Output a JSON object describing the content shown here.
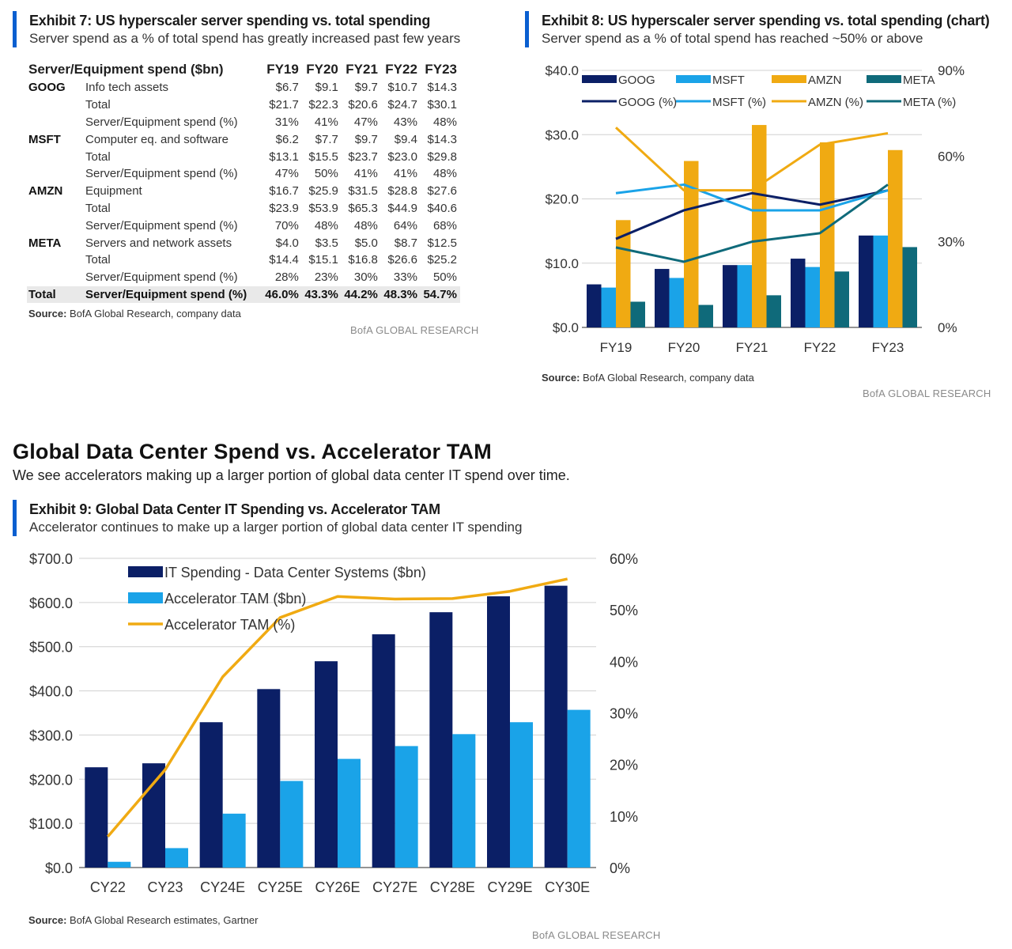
{
  "exhibit7": {
    "title": "Exhibit 7: US hyperscaler server spending vs. total spending",
    "subtitle": "Server spend as a % of total spend has greatly increased past few years",
    "header": "Server/Equipment spend ($bn)",
    "years": [
      "FY19",
      "FY20",
      "FY21",
      "FY22",
      "FY23"
    ],
    "rows": [
      {
        "company": "GOOG",
        "item": "Info tech assets",
        "values": [
          "$6.7",
          "$9.1",
          "$9.7",
          "$10.7",
          "$14.3"
        ]
      },
      {
        "company": "",
        "item": "Total",
        "values": [
          "$21.7",
          "$22.3",
          "$20.6",
          "$24.7",
          "$30.1"
        ]
      },
      {
        "company": "",
        "item": "Server/Equipment spend (%)",
        "values": [
          "31%",
          "41%",
          "47%",
          "43%",
          "48%"
        ]
      },
      {
        "company": "MSFT",
        "item": "Computer eq. and software",
        "values": [
          "$6.2",
          "$7.7",
          "$9.7",
          "$9.4",
          "$14.3"
        ]
      },
      {
        "company": "",
        "item": "Total",
        "values": [
          "$13.1",
          "$15.5",
          "$23.7",
          "$23.0",
          "$29.8"
        ]
      },
      {
        "company": "",
        "item": "Server/Equipment spend (%)",
        "values": [
          "47%",
          "50%",
          "41%",
          "41%",
          "48%"
        ]
      },
      {
        "company": "AMZN",
        "item": "Equipment",
        "values": [
          "$16.7",
          "$25.9",
          "$31.5",
          "$28.8",
          "$27.6"
        ]
      },
      {
        "company": "",
        "item": "Total",
        "values": [
          "$23.9",
          "$53.9",
          "$65.3",
          "$44.9",
          "$40.6"
        ]
      },
      {
        "company": "",
        "item": "Server/Equipment spend (%)",
        "values": [
          "70%",
          "48%",
          "48%",
          "64%",
          "68%"
        ]
      },
      {
        "company": "META",
        "item": "Servers and network assets",
        "values": [
          "$4.0",
          "$3.5",
          "$5.0",
          "$8.7",
          "$12.5"
        ]
      },
      {
        "company": "",
        "item": "Total",
        "values": [
          "$14.4",
          "$15.1",
          "$16.8",
          "$26.6",
          "$25.2"
        ]
      },
      {
        "company": "",
        "item": "Server/Equipment spend (%)",
        "values": [
          "28%",
          "23%",
          "30%",
          "33%",
          "50%"
        ]
      }
    ],
    "total_row": {
      "label": "Total",
      "item": "Server/Equipment spend (%)",
      "values": [
        "46.0%",
        "43.3%",
        "44.2%",
        "48.3%",
        "54.7%"
      ]
    },
    "source_label": "Source:",
    "source_text": "BofA Global Research, company data",
    "brand": "BofA GLOBAL RESEARCH"
  },
  "exhibit8": {
    "title": "Exhibit 8: US hyperscaler server spending vs. total spending (chart)",
    "subtitle": "Server spend as a % of total spend has reached ~50% or above",
    "source_label": "Source:",
    "source_text": "BofA Global Research, company data",
    "brand": "BofA GLOBAL RESEARCH"
  },
  "section": {
    "title": "Global Data Center Spend vs. Accelerator TAM",
    "subtitle": "We see accelerators making up a larger portion of global data center IT spend over time."
  },
  "exhibit9": {
    "title": "Exhibit 9: Global Data Center IT Spending vs. Accelerator TAM",
    "subtitle": "Accelerator continues to make up a larger portion of global data center IT spending",
    "source_label": "Source:",
    "source_text": "BofA Global Research estimates, Gartner",
    "brand": "BofA GLOBAL RESEARCH"
  },
  "colors": {
    "navy": "#0b1f66",
    "blue": "#1aa3e8",
    "orange": "#f0aa12",
    "teal": "#0f6a7a",
    "accent": "#0a5fd0"
  },
  "chart_data": [
    {
      "type": "bar",
      "categories": [
        "FY19",
        "FY20",
        "FY21",
        "FY22",
        "FY23"
      ],
      "series": [
        {
          "name": "GOOG",
          "axis": "left",
          "color": "#0b1f66",
          "values": [
            6.7,
            9.1,
            9.7,
            10.7,
            14.3
          ]
        },
        {
          "name": "MSFT",
          "axis": "left",
          "color": "#1aa3e8",
          "values": [
            6.2,
            7.7,
            9.7,
            9.4,
            14.3
          ]
        },
        {
          "name": "AMZN",
          "axis": "left",
          "color": "#f0aa12",
          "values": [
            16.7,
            25.9,
            31.5,
            28.8,
            27.6
          ]
        },
        {
          "name": "META",
          "axis": "left",
          "color": "#0f6a7a",
          "values": [
            4.0,
            3.5,
            5.0,
            8.7,
            12.5
          ]
        }
      ],
      "line_series": [
        {
          "name": "GOOG (%)",
          "axis": "right",
          "color": "#0b1f66",
          "values": [
            31,
            41,
            47,
            43,
            48
          ]
        },
        {
          "name": "MSFT (%)",
          "axis": "right",
          "color": "#1aa3e8",
          "values": [
            47,
            50,
            41,
            41,
            48
          ]
        },
        {
          "name": "AMZN (%)",
          "axis": "right",
          "color": "#f0aa12",
          "values": [
            70,
            48,
            48,
            64,
            68
          ]
        },
        {
          "name": "META (%)",
          "axis": "right",
          "color": "#0f6a7a",
          "values": [
            28,
            23,
            30,
            33,
            50
          ]
        }
      ],
      "ylim": [
        0,
        40
      ],
      "yticks": [
        "$0.0",
        "$10.0",
        "$20.0",
        "$30.0",
        "$40.0"
      ],
      "y2lim": [
        0,
        90
      ],
      "y2ticks": [
        "0%",
        "30%",
        "60%",
        "90%"
      ],
      "grid": true,
      "legend": "top"
    },
    {
      "type": "bar",
      "categories": [
        "CY22",
        "CY23",
        "CY24E",
        "CY25E",
        "CY26E",
        "CY27E",
        "CY28E",
        "CY29E",
        "CY30E"
      ],
      "series": [
        {
          "name": "IT Spending - Data Center Systems ($bn)",
          "axis": "left",
          "color": "#0b1f66",
          "values": [
            227,
            236,
            329,
            404,
            467,
            528,
            578,
            614,
            638
          ]
        },
        {
          "name": "Accelerator TAM ($bn)",
          "axis": "left",
          "color": "#1aa3e8",
          "values": [
            13,
            44,
            122,
            196,
            246,
            275,
            302,
            329,
            357
          ]
        }
      ],
      "line_series": [
        {
          "name": "Accelerator TAM (%)",
          "axis": "right",
          "color": "#f0aa12",
          "values": [
            6,
            19,
            37,
            48.5,
            52.6,
            52.1,
            52.2,
            53.6,
            56
          ]
        }
      ],
      "ylim": [
        0,
        700
      ],
      "yticks": [
        "$0.0",
        "$100.0",
        "$200.0",
        "$300.0",
        "$400.0",
        "$500.0",
        "$600.0",
        "$700.0"
      ],
      "y2lim": [
        0,
        60
      ],
      "y2ticks": [
        "0%",
        "10%",
        "20%",
        "30%",
        "40%",
        "50%",
        "60%"
      ],
      "grid": true,
      "legend": "top-left"
    }
  ]
}
